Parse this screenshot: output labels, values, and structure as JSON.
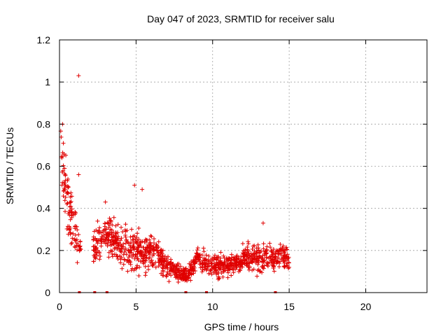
{
  "chart_data": {
    "type": "scatter",
    "title": "Day 047 of 2023, SRMTID for receiver salu",
    "xlabel": "GPS time / hours",
    "ylabel": "SRMTID / TECUs",
    "xlim": [
      0,
      24
    ],
    "ylim": [
      0,
      1.2
    ],
    "xticks": [
      0,
      5,
      10,
      15,
      20
    ],
    "xtick_labels": [
      "0",
      "5",
      "10",
      "15",
      "20"
    ],
    "yticks": [
      0,
      0.2,
      0.4,
      0.6,
      0.8,
      1.0,
      1.2
    ],
    "ytick_labels": [
      "0",
      "0.2",
      "0.4",
      "0.6",
      "0.8",
      "1",
      "1.2"
    ],
    "grid": true,
    "marker": "plus",
    "series_color": "#e00000",
    "density_profile": {
      "x_hours": [
        0.0,
        0.3,
        0.6,
        1.0,
        1.3,
        2.3,
        3.0,
        3.5,
        4.0,
        4.5,
        5.0,
        5.5,
        6.0,
        6.5,
        7.0,
        7.5,
        8.0,
        8.5,
        9.0,
        9.5,
        10.0,
        10.5,
        11.0,
        11.5,
        12.0,
        12.5,
        13.0,
        13.5,
        14.0,
        14.5,
        15.0
      ],
      "center": [
        0.72,
        0.55,
        0.4,
        0.3,
        0.22,
        0.22,
        0.27,
        0.26,
        0.22,
        0.2,
        0.21,
        0.18,
        0.2,
        0.17,
        0.13,
        0.11,
        0.08,
        0.1,
        0.17,
        0.14,
        0.13,
        0.12,
        0.13,
        0.14,
        0.16,
        0.17,
        0.16,
        0.18,
        0.16,
        0.18,
        0.15
      ],
      "spread": [
        0.07,
        0.12,
        0.14,
        0.12,
        0.08,
        0.08,
        0.09,
        0.08,
        0.08,
        0.08,
        0.1,
        0.08,
        0.08,
        0.06,
        0.05,
        0.04,
        0.03,
        0.04,
        0.05,
        0.05,
        0.05,
        0.05,
        0.05,
        0.05,
        0.06,
        0.06,
        0.07,
        0.06,
        0.05,
        0.06,
        0.04
      ],
      "points_per_hour": 90
    },
    "notable_points": [
      {
        "x": 1.25,
        "y": 1.03
      },
      {
        "x": 0.2,
        "y": 0.8
      },
      {
        "x": 4.9,
        "y": 0.51
      },
      {
        "x": 5.4,
        "y": 0.49
      },
      {
        "x": 3.0,
        "y": 0.43
      },
      {
        "x": 13.3,
        "y": 0.33
      },
      {
        "x": 1.25,
        "y": 0.56
      }
    ],
    "zero_markers_x": [
      1.3,
      2.3,
      3.1,
      8.25,
      9.6,
      14.1
    ]
  }
}
